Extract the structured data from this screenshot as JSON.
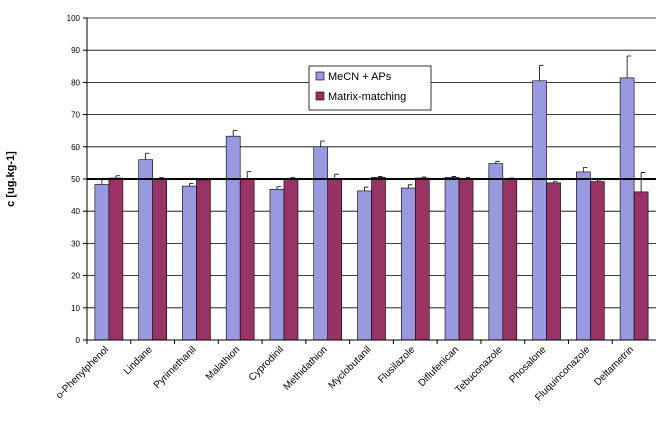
{
  "chart_data": {
    "type": "bar",
    "y_label": "c [ug.kg-1]",
    "categories": [
      "o-Phenylphenol",
      "Lindane",
      "Pyrimethanil",
      "Malathion",
      "Cyprodinil",
      "Methidathion",
      "Myclobutanil",
      "Flusilazole",
      "Diflufenican",
      "Tebuconazole",
      "Phosalone",
      "Fluquinconazole",
      "Deltametrin"
    ],
    "series": [
      {
        "name": "MeCN + APs",
        "color": "#9999e0",
        "values": [
          48.3,
          56,
          47.8,
          63.3,
          46.8,
          60,
          46.3,
          47.2,
          50.5,
          54.8,
          80.5,
          52.2,
          81.4
        ],
        "errors": [
          1.5,
          2,
          0.8,
          1.8,
          0.8,
          1.8,
          1.2,
          1,
          0.3,
          0.7,
          4.8,
          1.4,
          6.8
        ]
      },
      {
        "name": "Matrix-matching",
        "color": "#993366",
        "values": [
          50.3,
          50.2,
          49.7,
          50,
          50.2,
          50,
          50.5,
          50.3,
          50.2,
          50,
          48.8,
          49.2,
          46
        ],
        "errors": [
          0.7,
          0.3,
          0.3,
          2.3,
          0.3,
          1.5,
          0.3,
          0.3,
          0.3,
          0.3,
          0.5,
          0.5,
          6
        ]
      }
    ],
    "reference_line": 50,
    "ylim": [
      0,
      100
    ],
    "yticks": [
      0,
      10,
      20,
      30,
      40,
      50,
      60,
      70,
      80,
      90,
      100
    ],
    "grid": true
  }
}
